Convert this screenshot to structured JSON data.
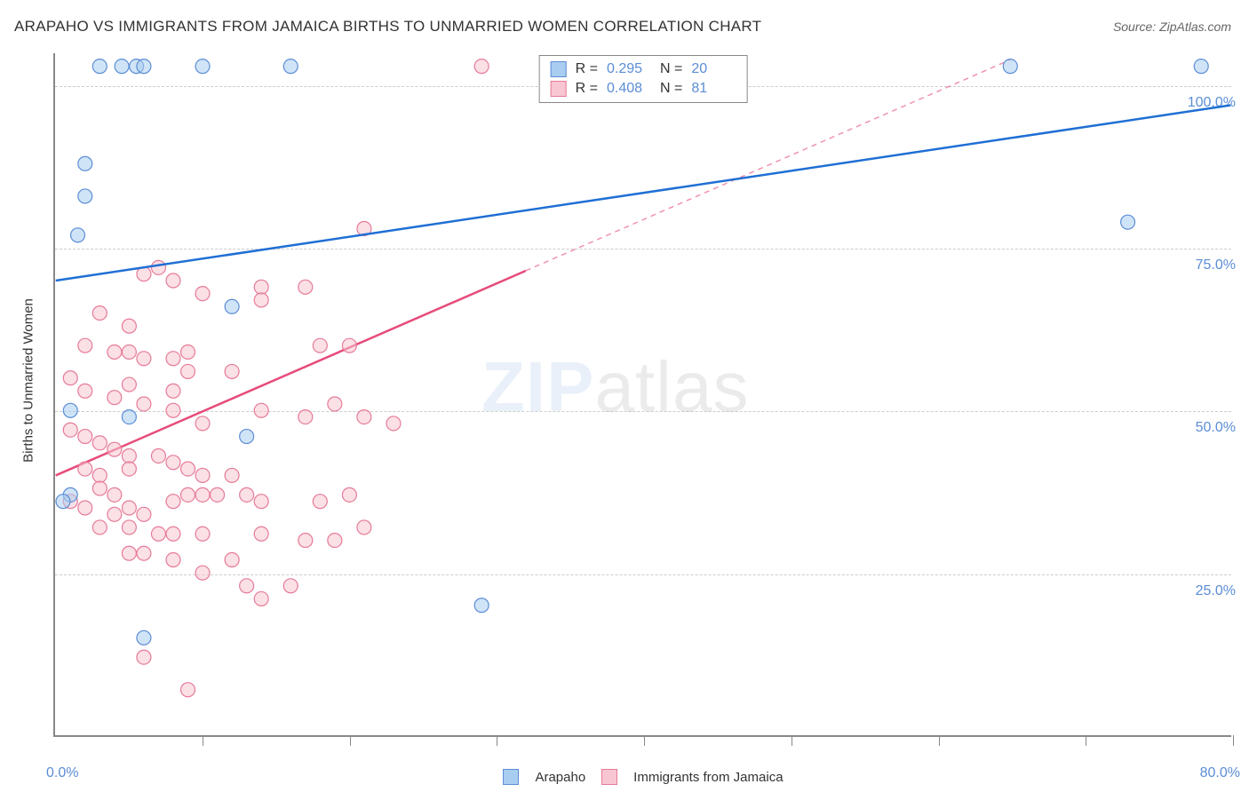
{
  "title": "ARAPAHO VS IMMIGRANTS FROM JAMAICA BIRTHS TO UNMARRIED WOMEN CORRELATION CHART",
  "source": "Source: ZipAtlas.com",
  "y_axis_label": "Births to Unmarried Women",
  "watermark": {
    "zip": "ZIP",
    "atlas": "atlas"
  },
  "chart": {
    "type": "scatter-with-regression",
    "xlim": [
      0,
      80
    ],
    "ylim": [
      0,
      105
    ],
    "x_ticks": [
      0,
      10,
      20,
      30,
      40,
      50,
      60,
      70,
      80
    ],
    "y_gridlines": [
      25,
      50,
      75,
      100
    ],
    "y_tick_labels": [
      "25.0%",
      "50.0%",
      "75.0%",
      "100.0%"
    ],
    "x_tick_labels": {
      "left": "0.0%",
      "right": "80.0%"
    },
    "background_color": "#ffffff",
    "grid_color": "#cccccc",
    "axis_color": "#888888",
    "tick_label_color": "#5b8dd6",
    "marker_radius": 8,
    "marker_opacity": 0.55,
    "marker_stroke_width": 1.2,
    "line_width": 2.5,
    "dash_pattern": "6,5"
  },
  "series": {
    "arapaho": {
      "label": "Arapaho",
      "color_fill": "#a9cdf0",
      "color_stroke": "#5b8dd6",
      "line_color": "#1f6fd4",
      "r": "0.295",
      "n": "20",
      "regression": {
        "x1": 0,
        "y1": 70,
        "x2": 80,
        "y2": 97
      },
      "regression_solid_until_x": 80,
      "points": [
        [
          3,
          103
        ],
        [
          4.5,
          103
        ],
        [
          5.5,
          103
        ],
        [
          6,
          103
        ],
        [
          10,
          103
        ],
        [
          16,
          103
        ],
        [
          65,
          103
        ],
        [
          78,
          103
        ],
        [
          2,
          88
        ],
        [
          2,
          83
        ],
        [
          1.5,
          77
        ],
        [
          1,
          50
        ],
        [
          12,
          66
        ],
        [
          5,
          49
        ],
        [
          13,
          46
        ],
        [
          1,
          37
        ],
        [
          0.5,
          36
        ],
        [
          6,
          15
        ],
        [
          29,
          20
        ],
        [
          73,
          79
        ]
      ]
    },
    "jamaica": {
      "label": "Immigrants from Jamaica",
      "color_fill": "#f7c6d2",
      "color_stroke": "#e67a98",
      "line_color": "#e74b7a",
      "r": "0.408",
      "n": "81",
      "regression": {
        "x1": 0,
        "y1": 40,
        "x2": 65,
        "y2": 104
      },
      "regression_solid_until_x": 32,
      "points": [
        [
          29,
          103
        ],
        [
          21,
          78
        ],
        [
          6,
          71
        ],
        [
          7,
          72
        ],
        [
          8,
          70
        ],
        [
          10,
          68
        ],
        [
          14,
          69
        ],
        [
          14,
          67
        ],
        [
          17,
          69
        ],
        [
          3,
          65
        ],
        [
          5,
          63
        ],
        [
          2,
          60
        ],
        [
          4,
          59
        ],
        [
          5,
          59
        ],
        [
          6,
          58
        ],
        [
          8,
          58
        ],
        [
          9,
          59
        ],
        [
          9,
          56
        ],
        [
          12,
          56
        ],
        [
          18,
          60
        ],
        [
          20,
          60
        ],
        [
          1,
          55
        ],
        [
          2,
          53
        ],
        [
          4,
          52
        ],
        [
          5,
          54
        ],
        [
          6,
          51
        ],
        [
          8,
          53
        ],
        [
          8,
          50
        ],
        [
          10,
          48
        ],
        [
          14,
          50
        ],
        [
          17,
          49
        ],
        [
          19,
          51
        ],
        [
          21,
          49
        ],
        [
          23,
          48
        ],
        [
          1,
          47
        ],
        [
          2,
          46
        ],
        [
          3,
          45
        ],
        [
          4,
          44
        ],
        [
          5,
          43
        ],
        [
          2,
          41
        ],
        [
          3,
          40
        ],
        [
          5,
          41
        ],
        [
          7,
          43
        ],
        [
          8,
          42
        ],
        [
          9,
          41
        ],
        [
          10,
          40
        ],
        [
          12,
          40
        ],
        [
          3,
          38
        ],
        [
          4,
          37
        ],
        [
          1,
          36
        ],
        [
          2,
          35
        ],
        [
          4,
          34
        ],
        [
          5,
          35
        ],
        [
          6,
          34
        ],
        [
          8,
          36
        ],
        [
          9,
          37
        ],
        [
          10,
          37
        ],
        [
          11,
          37
        ],
        [
          13,
          37
        ],
        [
          14,
          36
        ],
        [
          18,
          36
        ],
        [
          20,
          37
        ],
        [
          3,
          32
        ],
        [
          5,
          32
        ],
        [
          7,
          31
        ],
        [
          8,
          31
        ],
        [
          10,
          31
        ],
        [
          14,
          31
        ],
        [
          17,
          30
        ],
        [
          19,
          30
        ],
        [
          21,
          32
        ],
        [
          5,
          28
        ],
        [
          6,
          28
        ],
        [
          8,
          27
        ],
        [
          10,
          25
        ],
        [
          12,
          27
        ],
        [
          13,
          23
        ],
        [
          14,
          21
        ],
        [
          16,
          23
        ],
        [
          6,
          12
        ],
        [
          9,
          7
        ]
      ]
    }
  }
}
